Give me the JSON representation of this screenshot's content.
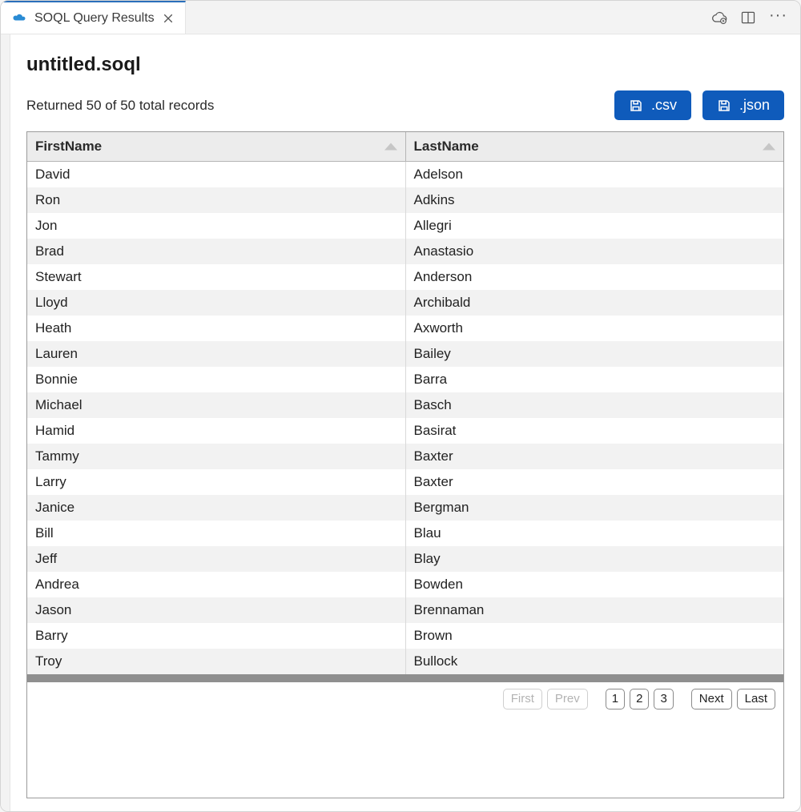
{
  "tab": {
    "title": "SOQL Query Results",
    "icon_color": "#2a8bd4"
  },
  "page": {
    "title": "untitled.soql",
    "records_text": "Returned 50 of 50 total records"
  },
  "export": {
    "csv_label": ".csv",
    "json_label": ".json",
    "button_bg": "#0f5bbb"
  },
  "table": {
    "columns": [
      "FirstName",
      "LastName"
    ],
    "rows": [
      [
        "David",
        "Adelson"
      ],
      [
        "Ron",
        "Adkins"
      ],
      [
        "Jon",
        "Allegri"
      ],
      [
        "Brad",
        "Anastasio"
      ],
      [
        "Stewart",
        "Anderson"
      ],
      [
        "Lloyd",
        "Archibald"
      ],
      [
        "Heath",
        "Axworth"
      ],
      [
        "Lauren",
        "Bailey"
      ],
      [
        "Bonnie",
        "Barra"
      ],
      [
        "Michael",
        "Basch"
      ],
      [
        "Hamid",
        "Basirat"
      ],
      [
        "Tammy",
        "Baxter"
      ],
      [
        "Larry",
        "Baxter"
      ],
      [
        "Janice",
        "Bergman"
      ],
      [
        "Bill",
        "Blau"
      ],
      [
        "Jeff",
        "Blay"
      ],
      [
        "Andrea",
        "Bowden"
      ],
      [
        "Jason",
        "Brennaman"
      ],
      [
        "Barry",
        "Brown"
      ],
      [
        "Troy",
        "Bullock"
      ]
    ],
    "header_bg": "#ececec",
    "row_alt_bg": "#f2f2f2",
    "border_color": "#9b9b9b"
  },
  "pagination": {
    "first": "First",
    "prev": "Prev",
    "pages": [
      "1",
      "2",
      "3"
    ],
    "next": "Next",
    "last": "Last",
    "first_disabled": true,
    "prev_disabled": true
  }
}
